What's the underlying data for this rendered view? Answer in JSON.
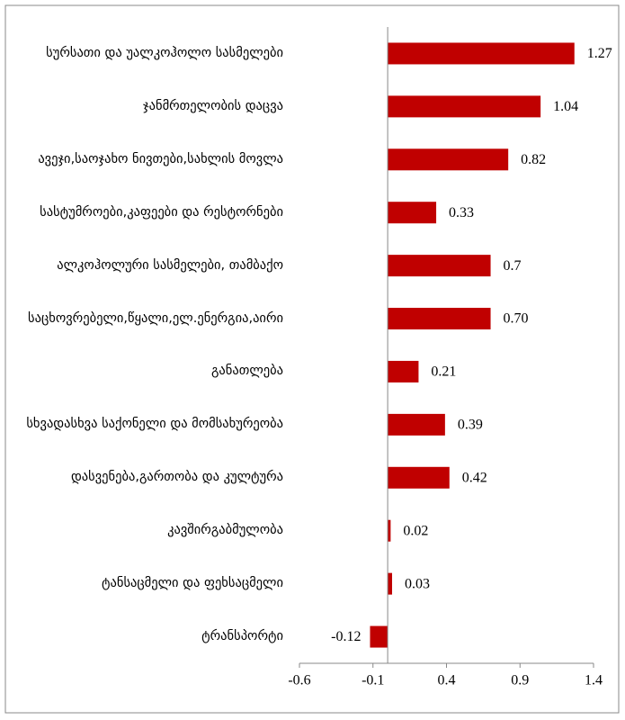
{
  "chart_data": {
    "type": "barh",
    "categories": [
      "სურსათი და უალკოჰოლო სასმელები",
      "ჯანმრთელობის დაცვა",
      "ავეჯი,საოჯახო ნივთები,სახლის მოვლა",
      "სასტუმროები,კაფეები და რესტორნები",
      "ალკოჰოლური სასმელები, თამბაქო",
      "საცხოვრებელი,წყალი,ელ.ენერგია,აირი",
      "განათლება",
      "სხვადასხვა საქონელი და მომსახურეობა",
      "დასვენება,გართობა და კულტურა",
      "კავშირგაბმულობა",
      "ტანსაცმელი და ფეხსაცმელი",
      "ტრანსპორტი"
    ],
    "values": [
      1.27,
      1.04,
      0.82,
      0.33,
      0.7,
      0.7,
      0.21,
      0.39,
      0.42,
      0.02,
      0.03,
      -0.12
    ],
    "value_labels": [
      "1.27",
      "1.04",
      "0.82",
      "0.33",
      "0.7",
      "0.70",
      "0.21",
      "0.39",
      "0.42",
      "0.02",
      "0.03",
      "-0.12"
    ],
    "color": "#c00000",
    "xlim": [
      -0.6,
      1.4
    ],
    "xticks": [
      -0.6,
      -0.1,
      0.4,
      0.9,
      1.4
    ]
  }
}
